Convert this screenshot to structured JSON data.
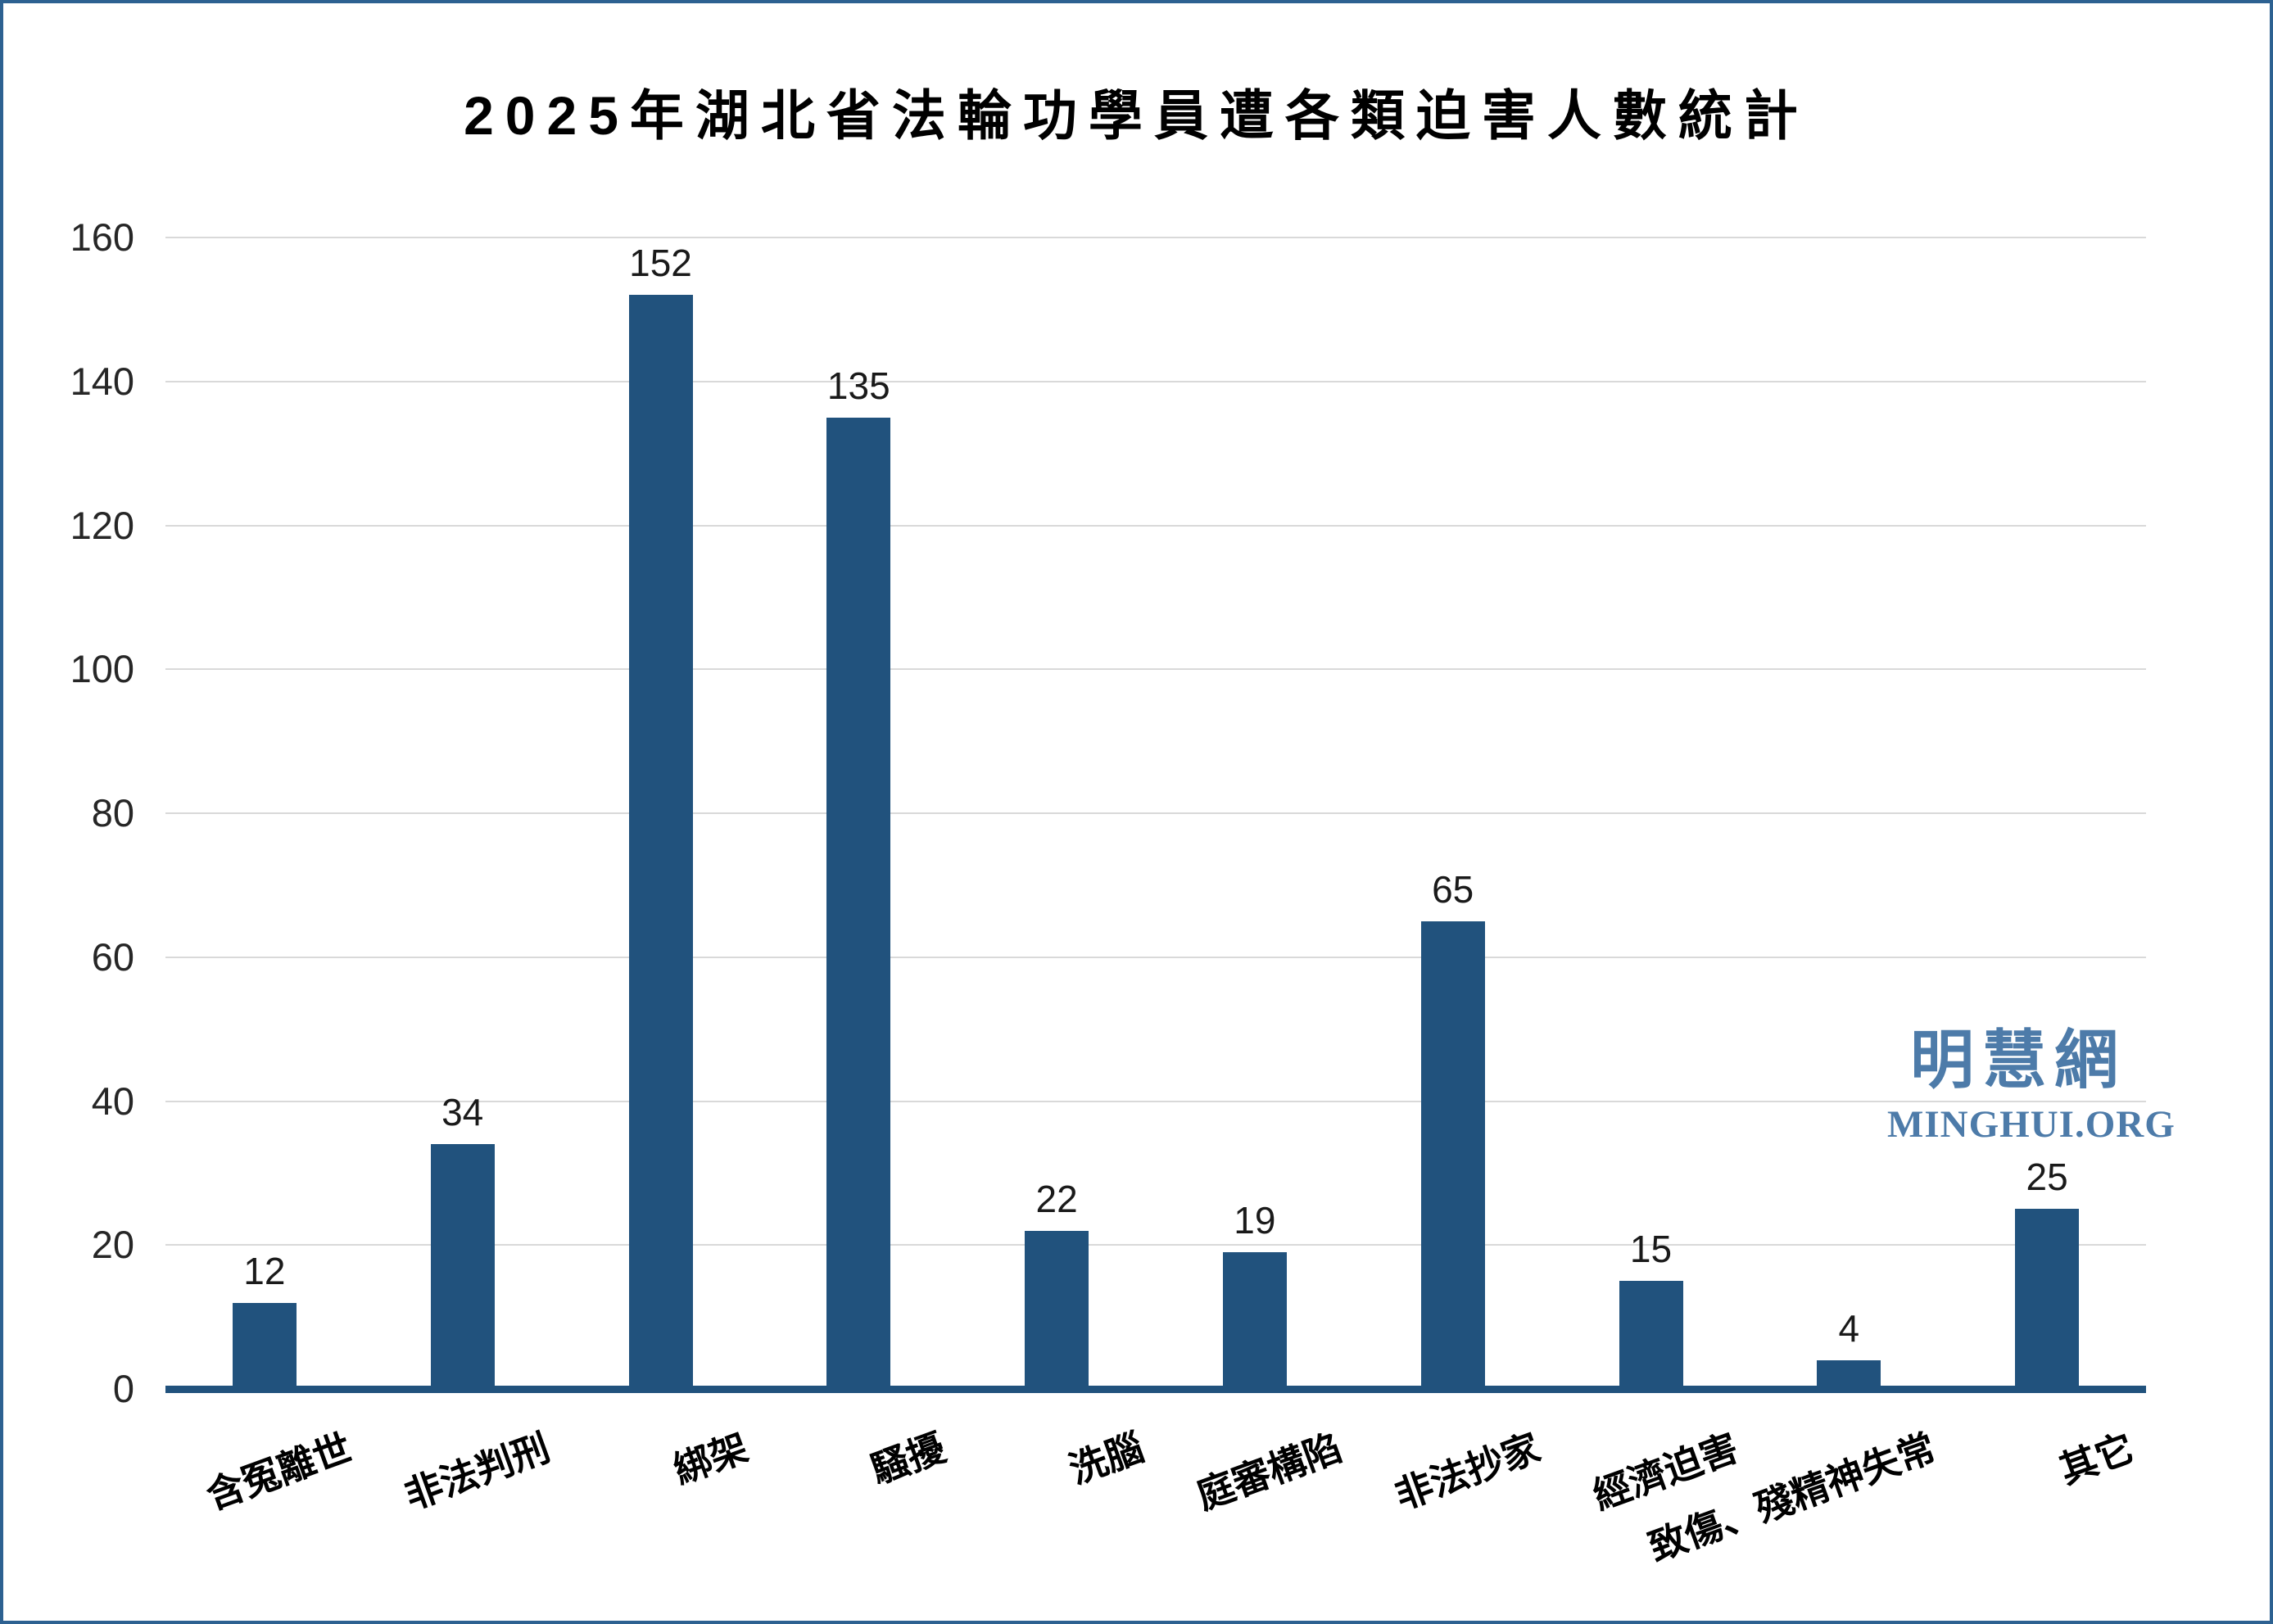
{
  "title": "2025年湖北省法輪功學員遭各類迫害人數統計",
  "watermark": {
    "cjk": "明慧網",
    "latin": "MINGHUI.ORG",
    "color": "#4d7ba9"
  },
  "frame": {
    "border_color": "#2d6191"
  },
  "chart_data": {
    "type": "bar",
    "title": "2025年湖北省法輪功學員遭各類迫害人數統計",
    "categories": [
      "含冤離世",
      "非法判刑",
      "綁架",
      "騷擾",
      "洗腦",
      "庭審構陷",
      "非法抄家",
      "經濟迫害",
      "致傷、殘精神失常",
      "其它"
    ],
    "values": [
      12,
      34,
      152,
      135,
      22,
      19,
      65,
      15,
      4,
      25
    ],
    "value_labels": [
      "12",
      "34",
      "152",
      "135",
      "22",
      "19",
      "65",
      "15",
      "4",
      "25"
    ],
    "xlabel": "",
    "ylabel": "",
    "ylim": [
      0,
      160
    ],
    "ytick_step": 20,
    "yticks": [
      "0",
      "20",
      "40",
      "60",
      "80",
      "100",
      "120",
      "140",
      "160"
    ],
    "grid": true,
    "legend": false,
    "bar_color": "#21527d",
    "axis_line_color": "#21527d",
    "gridline_color": "#d9d9d9",
    "tick_label_color": "#262626"
  }
}
